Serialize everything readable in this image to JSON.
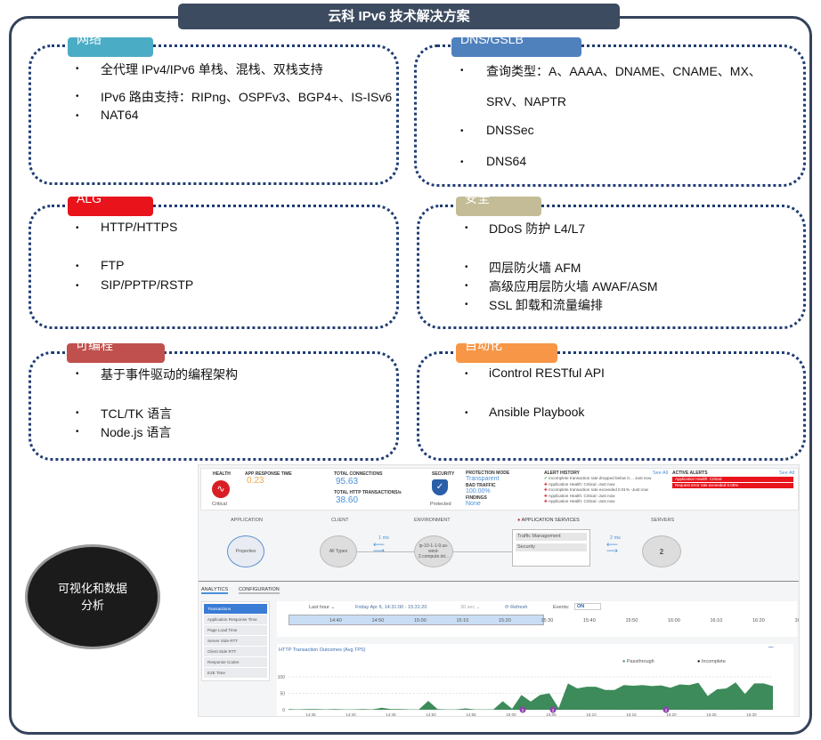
{
  "title": "云科 IPv6 技术解决方案",
  "sections": [
    {
      "label": "网络",
      "color": "#4bacc6",
      "items": [
        "全代理 IPv4/IPv6 单栈、混栈、双栈支持",
        "IPv6 路由支持：RIPng、OSPFv3、BGP4+、IS-ISv6",
        "NAT64"
      ]
    },
    {
      "label": "DNS/GSLB",
      "color": "#4f81bd",
      "items": [
        "查询类型：A、AAAA、DNAME、CNAME、MX、",
        "SRV、NAPTR",
        "DNSSec",
        "DNS64"
      ]
    },
    {
      "label": "ALG",
      "color": "#e8131b",
      "items": [
        "HTTP/HTTPS",
        "FTP",
        "SIP/PPTP/RSTP"
      ]
    },
    {
      "label": "安全",
      "color": "#c4bc96",
      "items": [
        "DDoS 防护 L4/L7",
        "四层防火墙 AFM",
        "高级应用层防火墙 AWAF/ASM",
        "SSL 卸载和流量编排"
      ]
    },
    {
      "label": "可编程",
      "color": "#c0504d",
      "items": [
        "基于事件驱动的编程架构",
        "TCL/TK 语言",
        "Node.js 语言"
      ]
    },
    {
      "label": "自动化",
      "color": "#f79646",
      "items": [
        "iControl RESTful API",
        "Ansible Playbook"
      ]
    }
  ],
  "highlight": "可视化和数据分析",
  "dashboard": {
    "health": {
      "label": "HEALTH",
      "status": "Critical"
    },
    "app_response": {
      "label": "APP RESPONSE TIME",
      "value": "0.23"
    },
    "connections": {
      "label": "TOTAL CONNECTIONS",
      "value": "95.63",
      "http_label": "TOTAL HTTP TRANSACTIONS/s",
      "http_value": "38.60"
    },
    "security": {
      "label": "SECURITY",
      "status": "Protected"
    },
    "protection": {
      "mode_label": "PROTECTION MODE",
      "mode": "Transparent",
      "bad_label": "BAD TRAFFIC",
      "bad": "100.00%",
      "findings_label": "FINDINGS",
      "findings": "None"
    },
    "alert_history": {
      "label": "ALERT HISTORY",
      "see_all": "See All",
      "items": [
        "Incomplete transaction rate dropped below 0.... Just now",
        "Application Health: Critical -Just now",
        "Incomplete transaction rate exceeded 0.01% -Just now",
        "Application Health: Critical -Just now",
        "Application Health: Critical -Just now"
      ]
    },
    "active_alerts": {
      "label": "ACTIVE ALERTS",
      "see_all": "See All",
      "items": [
        "Application Health: Critical",
        "Request error rate exceeded 0.05%"
      ]
    },
    "flow": {
      "application": "APPLICATION",
      "properties": "Properties",
      "client": "CLIENT",
      "all_types": "All Types",
      "latency1": "1 ms",
      "environment": "ENVIRONMENT",
      "env_node": "ip-10-1-1-9.us-west-2.compute.int...",
      "app_services": "APPLICATION SERVICES",
      "svc": [
        "Traffic Management",
        "Security"
      ],
      "latency2": "2 ms",
      "servers": "SERVERS",
      "server_count": "2"
    },
    "tabs": [
      "ANALYTICS",
      "CONFIGURATION"
    ],
    "menu": [
      "Transactions",
      "Application Response Time",
      "Page Load Time",
      "Server Side RTT",
      "Client Side RTT",
      "Response Codes",
      "E2E Time"
    ],
    "controls": {
      "range": "Last hour ⌄",
      "window": "Friday Apr 6, 14:31:00 - 15:31:20",
      "interval": "30 sec ⌄",
      "refresh": "Refresh",
      "events": "Events:",
      "toggle": "ON"
    },
    "timeline": [
      "14:40",
      "14:50",
      "15:00",
      "15:10",
      "15:20",
      "15:30",
      "15:40",
      "15:50",
      "16:00",
      "16:10",
      "16:20",
      "16:30"
    ]
  },
  "chart_data": {
    "type": "area",
    "title": "HTTP Transaction Outcomes (Avg TPS)",
    "legend": [
      "Passthrough",
      "Incomplete"
    ],
    "legend_placement": "top-right",
    "colors": {
      "Passthrough": "#3d8b5a",
      "Incomplete": "#111111"
    },
    "ylim": [
      0,
      100
    ],
    "yticks": [
      "100",
      "50",
      "0"
    ],
    "xticks": [
      "14:35",
      "14:40",
      "14:45",
      "14:50",
      "14:55",
      "15:00",
      "15:05",
      "15:10",
      "15:15",
      "15:20",
      "15:25",
      "15:30"
    ],
    "series": [
      {
        "name": "Passthrough",
        "values": [
          2,
          1,
          2,
          2,
          1,
          2,
          1,
          1,
          2,
          1,
          6,
          2,
          2,
          1,
          1,
          27,
          2,
          1,
          1,
          4,
          1,
          1,
          1,
          26,
          3,
          45,
          25,
          45,
          50,
          5,
          80,
          65,
          70,
          70,
          60,
          60,
          75,
          73,
          75,
          72,
          74,
          67,
          77,
          75,
          82,
          42,
          62,
          65,
          83,
          48,
          80,
          80,
          72
        ]
      }
    ],
    "event_markers": [
      "2",
      "2",
      "2"
    ]
  }
}
